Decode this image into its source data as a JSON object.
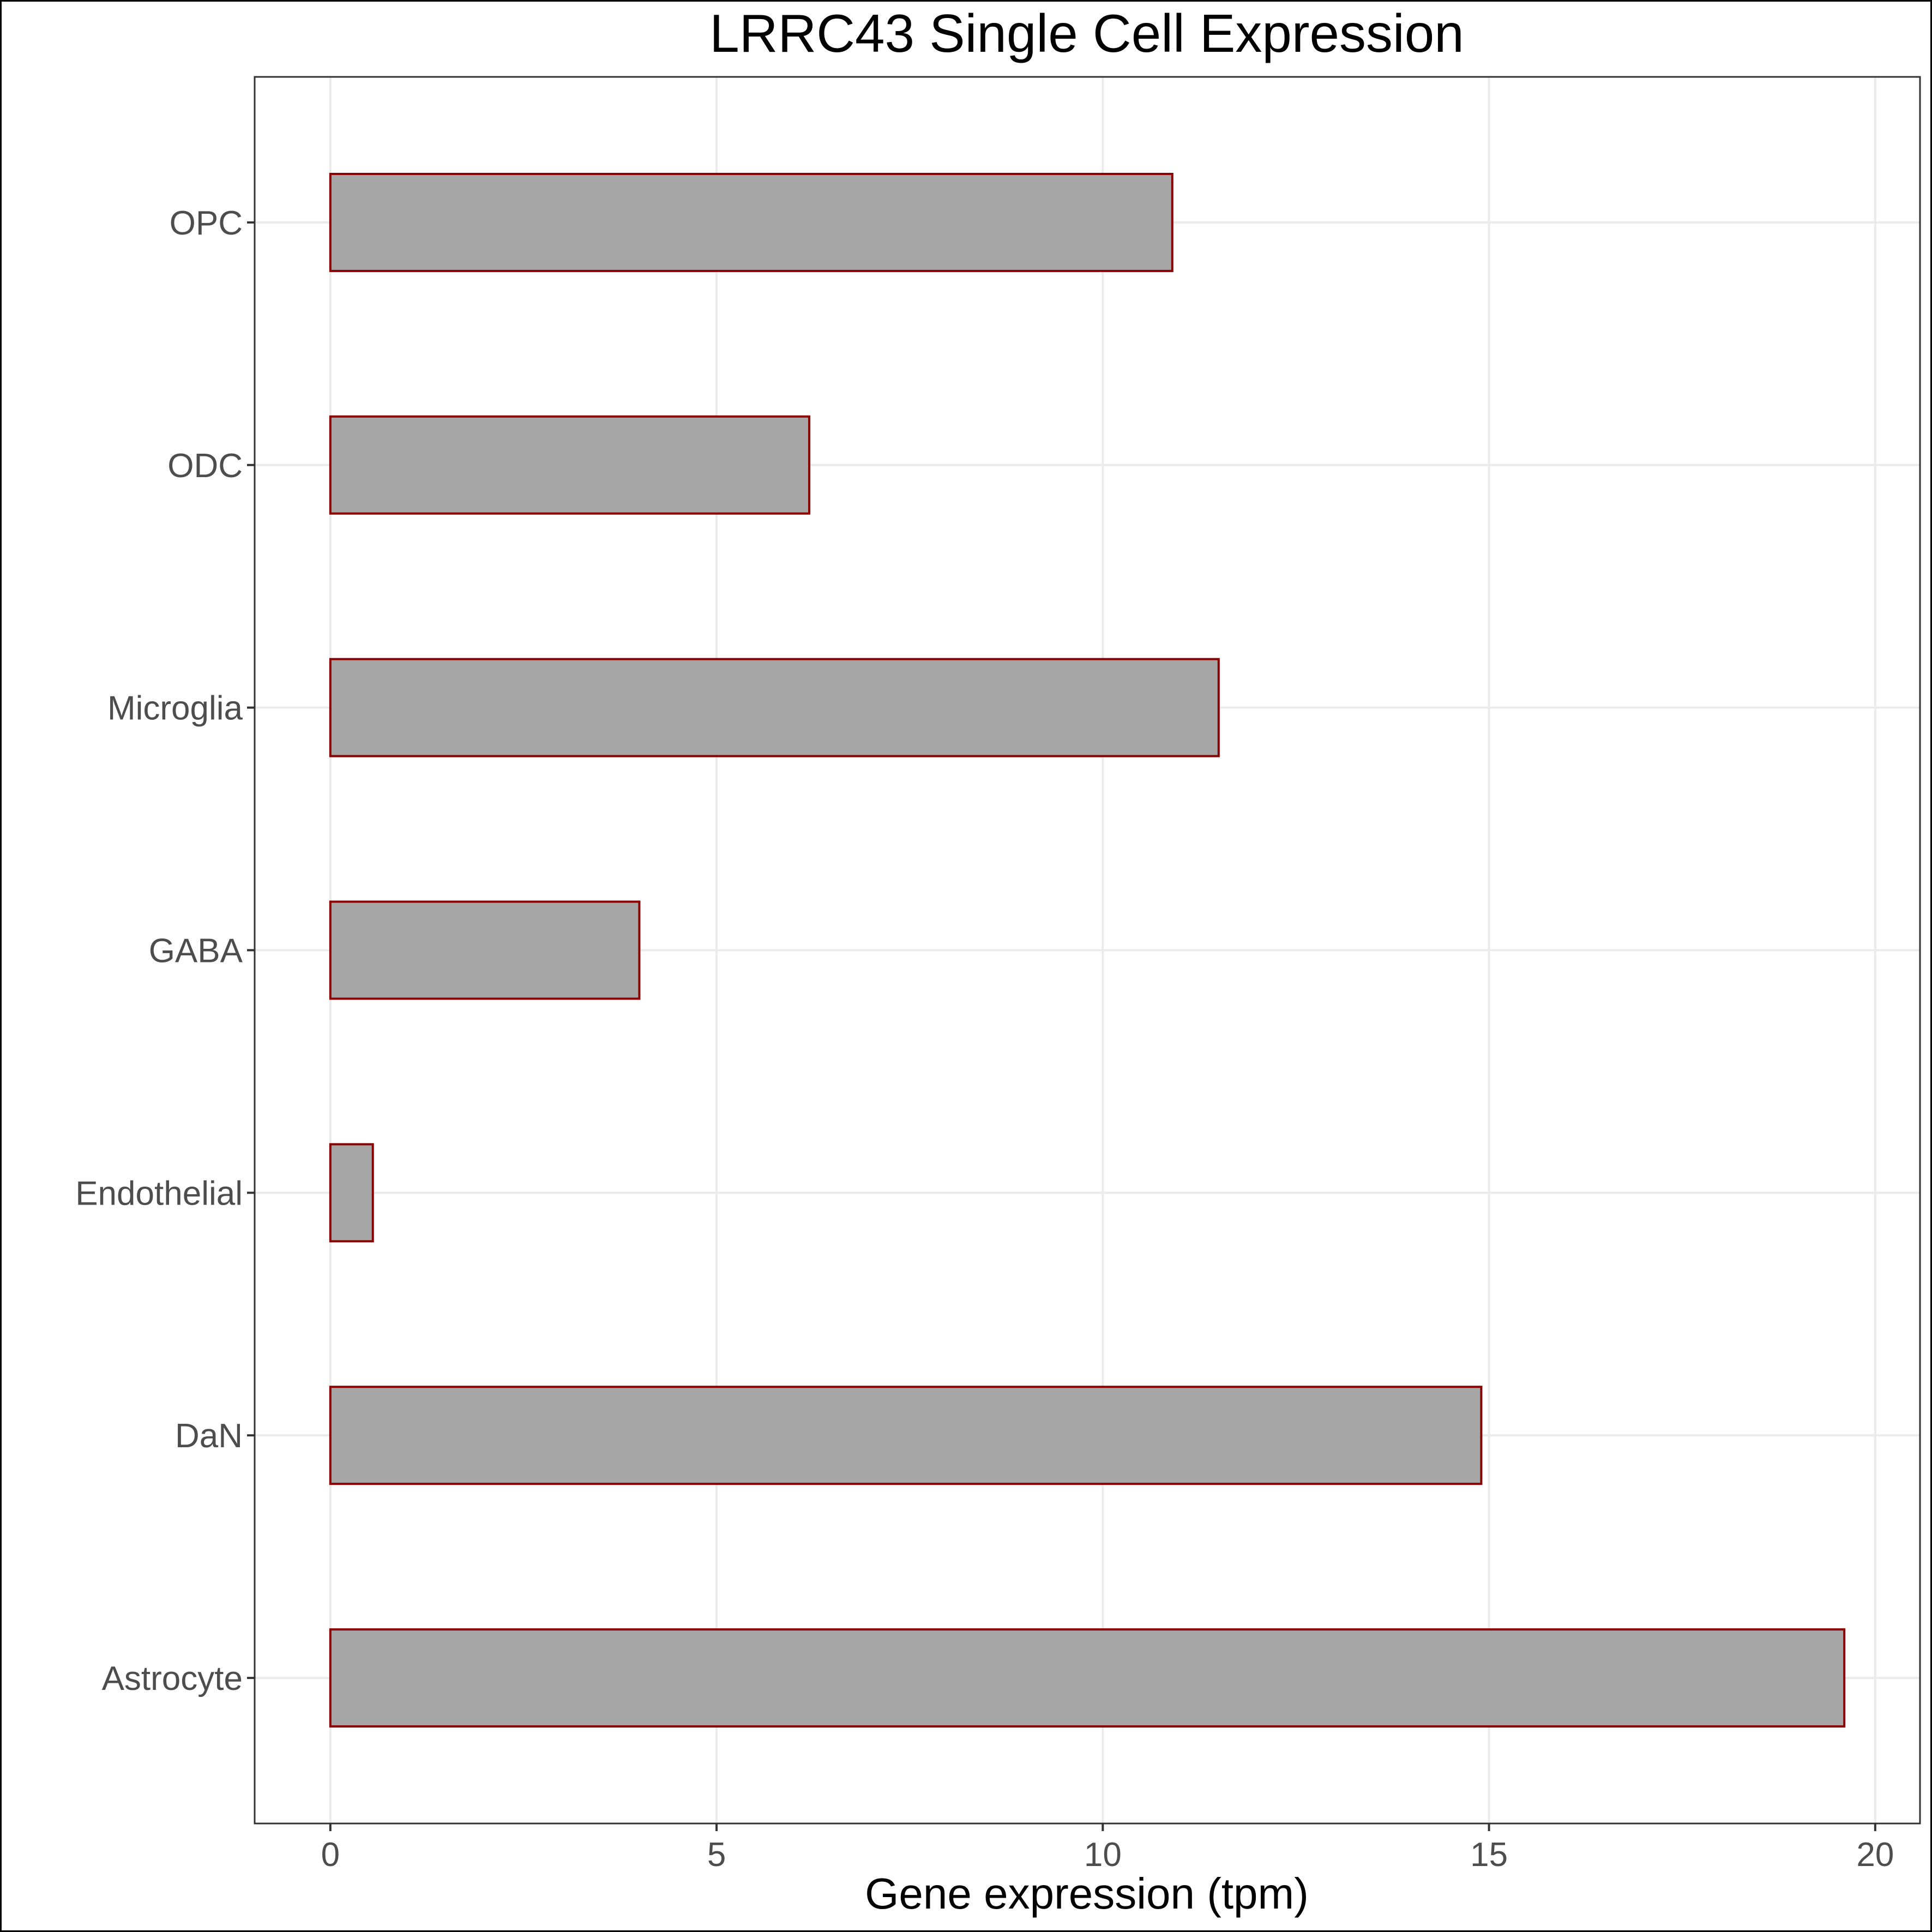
{
  "chart_data": {
    "type": "bar",
    "orientation": "horizontal",
    "title": "LRRC43 Single Cell Expression",
    "xlabel": "Gene expression (tpm)",
    "ylabel": "",
    "categories": [
      "Astrocyte",
      "DaN",
      "Endothelial",
      "GABA",
      "Microglia",
      "ODC",
      "OPC"
    ],
    "values": [
      19.6,
      14.9,
      0.55,
      4.0,
      11.5,
      6.2,
      10.9
    ],
    "xlim": [
      -0.98,
      20.58
    ],
    "xticks": [
      0,
      5,
      10,
      15,
      20
    ],
    "grid": true,
    "legend": "none",
    "colors": {
      "bar_fill": "#a6a6a6",
      "bar_stroke": "#8b0000",
      "grid": "#ebebeb",
      "tick_text": "#4d4d4d",
      "frame": "#333333"
    }
  }
}
